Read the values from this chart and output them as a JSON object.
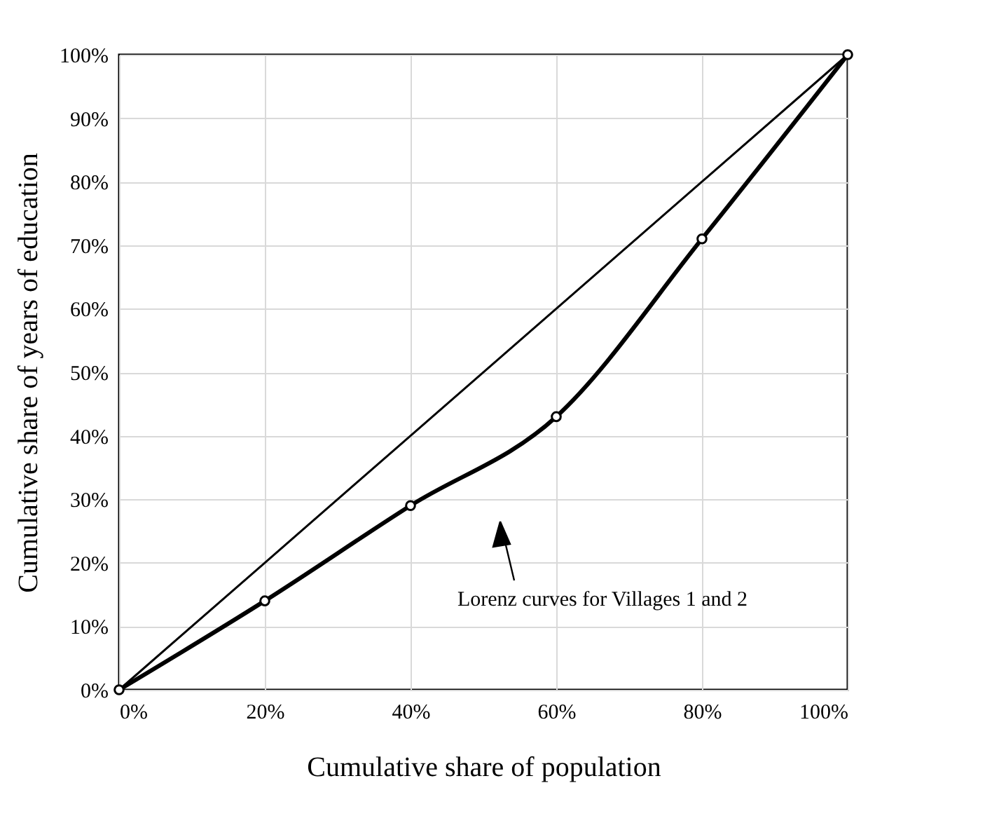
{
  "chart_data": {
    "type": "line",
    "xlabel": "Cumulative share of population",
    "ylabel": "Cumulative share of years of education",
    "x": [
      0,
      20,
      40,
      60,
      80,
      100
    ],
    "series": [
      {
        "color": "#000000",
        "values": [
          0,
          20,
          40,
          60,
          80,
          100
        ],
        "marker": "none"
      },
      {
        "color": "#000000",
        "values": [
          0,
          14,
          29,
          43,
          71,
          100
        ],
        "marker": "circle"
      }
    ],
    "annotations": [
      "Lorenz curves for Villages 1 and 2"
    ],
    "xlim": [
      0,
      100
    ],
    "ylim": [
      0,
      100
    ],
    "xticks": [
      {
        "value": 0,
        "label": "0%"
      },
      {
        "value": 20,
        "label": "20%"
      },
      {
        "value": 40,
        "label": "40%"
      },
      {
        "value": 60,
        "label": "60%"
      },
      {
        "value": 80,
        "label": "80%"
      },
      {
        "value": 100,
        "label": "100%"
      }
    ],
    "yticks": [
      {
        "value": 0,
        "label": "0%"
      },
      {
        "value": 10,
        "label": "10%"
      },
      {
        "value": 20,
        "label": "20%"
      },
      {
        "value": 30,
        "label": "30%"
      },
      {
        "value": 40,
        "label": "40%"
      },
      {
        "value": 50,
        "label": "50%"
      },
      {
        "value": 60,
        "label": "60%"
      },
      {
        "value": 70,
        "label": "70%"
      },
      {
        "value": 80,
        "label": "80%"
      },
      {
        "value": 90,
        "label": "90%"
      },
      {
        "value": 100,
        "label": "100%"
      }
    ],
    "grid": true
  }
}
